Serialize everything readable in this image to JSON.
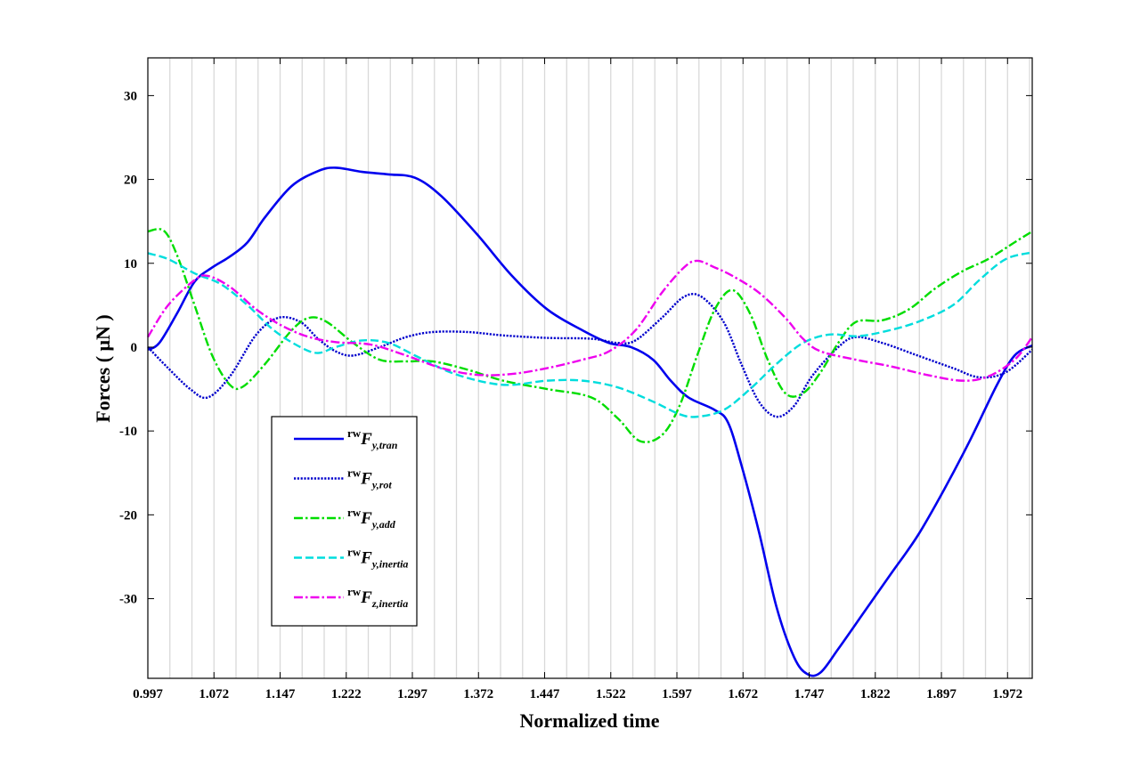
{
  "chart_data": {
    "type": "line",
    "title": "",
    "xlabel": "Normalized time",
    "ylabel": "Forces ( μN )",
    "xlim": [
      0.997,
      2.0
    ],
    "ylim": [
      -39.5,
      34.5
    ],
    "grid": "vertical",
    "legend_position": "lower-left",
    "x_ticks": [
      "0.997",
      "1.072",
      "1.147",
      "1.222",
      "1.297",
      "1.372",
      "1.447",
      "1.522",
      "1.597",
      "1.672",
      "1.747",
      "1.822",
      "1.897",
      "1.972"
    ],
    "y_ticks": [
      "30",
      "20",
      "10",
      "0",
      "-10",
      "-20",
      "-30"
    ],
    "series": [
      {
        "name": "rwFy,tran",
        "sup": "rw",
        "main": "F",
        "sub": "y,tran",
        "color": "#0000ee",
        "dash": "solid",
        "points": [
          [
            0.997,
            -0.3
          ],
          [
            1.01,
            0.5
          ],
          [
            1.03,
            4.0
          ],
          [
            1.05,
            7.8
          ],
          [
            1.07,
            9.5
          ],
          [
            1.09,
            10.8
          ],
          [
            1.11,
            12.5
          ],
          [
            1.13,
            15.5
          ],
          [
            1.16,
            19.2
          ],
          [
            1.19,
            21.0
          ],
          [
            1.21,
            21.4
          ],
          [
            1.24,
            20.9
          ],
          [
            1.27,
            20.6
          ],
          [
            1.3,
            20.2
          ],
          [
            1.33,
            18.0
          ],
          [
            1.37,
            13.5
          ],
          [
            1.41,
            8.5
          ],
          [
            1.45,
            4.5
          ],
          [
            1.49,
            2.0
          ],
          [
            1.52,
            0.5
          ],
          [
            1.545,
            0.0
          ],
          [
            1.57,
            -1.5
          ],
          [
            1.59,
            -4.0
          ],
          [
            1.61,
            -6.0
          ],
          [
            1.64,
            -7.5
          ],
          [
            1.655,
            -9.0
          ],
          [
            1.67,
            -14.0
          ],
          [
            1.69,
            -22.0
          ],
          [
            1.71,
            -31.0
          ],
          [
            1.73,
            -37.0
          ],
          [
            1.745,
            -39.0
          ],
          [
            1.76,
            -38.8
          ],
          [
            1.78,
            -36.0
          ],
          [
            1.81,
            -31.5
          ],
          [
            1.84,
            -27.0
          ],
          [
            1.87,
            -22.5
          ],
          [
            1.9,
            -17.0
          ],
          [
            1.93,
            -11.0
          ],
          [
            1.96,
            -4.5
          ],
          [
            1.98,
            -1.0
          ],
          [
            2.0,
            0.2
          ]
        ]
      },
      {
        "name": "rwFy,rot",
        "sup": "rw",
        "main": "F",
        "sub": "y,rot",
        "color": "#0000cc",
        "dash": "dotted",
        "points": [
          [
            0.997,
            0.0
          ],
          [
            1.02,
            -2.5
          ],
          [
            1.045,
            -5.0
          ],
          [
            1.065,
            -6.0
          ],
          [
            1.09,
            -3.5
          ],
          [
            1.12,
            1.5
          ],
          [
            1.145,
            3.5
          ],
          [
            1.17,
            3.0
          ],
          [
            1.19,
            1.0
          ],
          [
            1.21,
            -0.5
          ],
          [
            1.23,
            -1.0
          ],
          [
            1.26,
            0.0
          ],
          [
            1.29,
            1.2
          ],
          [
            1.32,
            1.8
          ],
          [
            1.36,
            1.8
          ],
          [
            1.4,
            1.4
          ],
          [
            1.45,
            1.1
          ],
          [
            1.5,
            1.0
          ],
          [
            1.53,
            0.5
          ],
          [
            1.55,
            0.8
          ],
          [
            1.58,
            3.5
          ],
          [
            1.605,
            6.0
          ],
          [
            1.625,
            6.0
          ],
          [
            1.65,
            3.0
          ],
          [
            1.67,
            -2.0
          ],
          [
            1.69,
            -6.5
          ],
          [
            1.71,
            -8.3
          ],
          [
            1.73,
            -7.0
          ],
          [
            1.75,
            -3.5
          ],
          [
            1.78,
            0.0
          ],
          [
            1.8,
            1.2
          ],
          [
            1.83,
            0.5
          ],
          [
            1.87,
            -1.0
          ],
          [
            1.91,
            -2.5
          ],
          [
            1.94,
            -3.6
          ],
          [
            1.97,
            -3.0
          ],
          [
            2.0,
            -0.3
          ]
        ]
      },
      {
        "name": "rwFy,add",
        "sup": "rw",
        "main": "F",
        "sub": "y,add",
        "color": "#00dd00",
        "dash": "dash-dot",
        "points": [
          [
            0.997,
            13.8
          ],
          [
            1.015,
            13.9
          ],
          [
            1.03,
            11.0
          ],
          [
            1.05,
            5.0
          ],
          [
            1.07,
            -1.0
          ],
          [
            1.09,
            -4.5
          ],
          [
            1.105,
            -4.7
          ],
          [
            1.13,
            -2.0
          ],
          [
            1.16,
            2.0
          ],
          [
            1.18,
            3.5
          ],
          [
            1.2,
            3.0
          ],
          [
            1.23,
            0.5
          ],
          [
            1.26,
            -1.5
          ],
          [
            1.29,
            -1.7
          ],
          [
            1.32,
            -1.7
          ],
          [
            1.36,
            -2.7
          ],
          [
            1.4,
            -4.0
          ],
          [
            1.45,
            -5.0
          ],
          [
            1.5,
            -6.0
          ],
          [
            1.53,
            -8.5
          ],
          [
            1.555,
            -11.2
          ],
          [
            1.58,
            -10.5
          ],
          [
            1.6,
            -7.0
          ],
          [
            1.62,
            -1.0
          ],
          [
            1.64,
            4.5
          ],
          [
            1.66,
            6.8
          ],
          [
            1.68,
            4.0
          ],
          [
            1.7,
            -1.5
          ],
          [
            1.72,
            -5.5
          ],
          [
            1.74,
            -5.5
          ],
          [
            1.76,
            -3.0
          ],
          [
            1.78,
            0.5
          ],
          [
            1.8,
            3.0
          ],
          [
            1.83,
            3.2
          ],
          [
            1.86,
            4.5
          ],
          [
            1.89,
            7.0
          ],
          [
            1.92,
            9.0
          ],
          [
            1.95,
            10.5
          ],
          [
            1.98,
            12.5
          ],
          [
            2.0,
            13.8
          ]
        ]
      },
      {
        "name": "rwFy,inertia",
        "sup": "rw",
        "main": "F",
        "sub": "y,inertia",
        "color": "#00dddd",
        "dash": "dashed",
        "points": [
          [
            0.997,
            11.2
          ],
          [
            1.02,
            10.5
          ],
          [
            1.05,
            8.8
          ],
          [
            1.08,
            7.5
          ],
          [
            1.11,
            5.0
          ],
          [
            1.14,
            2.0
          ],
          [
            1.17,
            0.0
          ],
          [
            1.19,
            -0.7
          ],
          [
            1.21,
            0.0
          ],
          [
            1.24,
            0.8
          ],
          [
            1.27,
            0.5
          ],
          [
            1.3,
            -1.0
          ],
          [
            1.34,
            -3.0
          ],
          [
            1.38,
            -4.2
          ],
          [
            1.41,
            -4.5
          ],
          [
            1.45,
            -4.0
          ],
          [
            1.49,
            -4.0
          ],
          [
            1.53,
            -4.8
          ],
          [
            1.57,
            -6.5
          ],
          [
            1.6,
            -8.0
          ],
          [
            1.62,
            -8.3
          ],
          [
            1.65,
            -7.5
          ],
          [
            1.68,
            -5.0
          ],
          [
            1.71,
            -2.0
          ],
          [
            1.74,
            0.5
          ],
          [
            1.77,
            1.5
          ],
          [
            1.8,
            1.3
          ],
          [
            1.83,
            1.8
          ],
          [
            1.87,
            3.0
          ],
          [
            1.91,
            5.0
          ],
          [
            1.94,
            8.0
          ],
          [
            1.97,
            10.5
          ],
          [
            2.0,
            11.3
          ]
        ]
      },
      {
        "name": "rwFz,inertia",
        "sup": "rw",
        "main": "F",
        "sub": "z,inertia",
        "color": "#ee00ee",
        "dash": "dash-dot",
        "points": [
          [
            0.997,
            1.2
          ],
          [
            1.02,
            5.0
          ],
          [
            1.05,
            8.0
          ],
          [
            1.065,
            8.5
          ],
          [
            1.09,
            7.2
          ],
          [
            1.12,
            4.5
          ],
          [
            1.15,
            2.5
          ],
          [
            1.18,
            1.2
          ],
          [
            1.21,
            0.6
          ],
          [
            1.25,
            0.3
          ],
          [
            1.29,
            -1.0
          ],
          [
            1.33,
            -2.5
          ],
          [
            1.37,
            -3.3
          ],
          [
            1.41,
            -3.2
          ],
          [
            1.45,
            -2.5
          ],
          [
            1.49,
            -1.5
          ],
          [
            1.52,
            -0.5
          ],
          [
            1.55,
            2.0
          ],
          [
            1.58,
            6.5
          ],
          [
            1.605,
            9.5
          ],
          [
            1.62,
            10.3
          ],
          [
            1.64,
            9.5
          ],
          [
            1.66,
            8.5
          ],
          [
            1.69,
            6.5
          ],
          [
            1.72,
            3.5
          ],
          [
            1.74,
            1.0
          ],
          [
            1.76,
            -0.5
          ],
          [
            1.8,
            -1.5
          ],
          [
            1.84,
            -2.3
          ],
          [
            1.88,
            -3.3
          ],
          [
            1.92,
            -4.0
          ],
          [
            1.95,
            -3.5
          ],
          [
            1.98,
            -1.5
          ],
          [
            2.0,
            1.2
          ]
        ]
      }
    ]
  }
}
